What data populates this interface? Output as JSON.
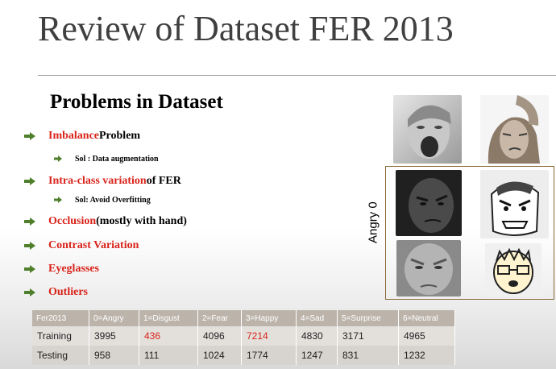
{
  "slide": {
    "title": "Review of Dataset FER 2013",
    "subtitle": "Problems in Dataset",
    "bullets": [
      {
        "red": "Imbalance",
        "rest": " Problem",
        "sub": "Sol : Data augmentation"
      },
      {
        "red": "Intra-class variation",
        "rest": " of FER",
        "sub": "Sol: Avoid Overfitting"
      },
      {
        "red": "Occlusion",
        "rest": " (mostly with hand)",
        "sub": ""
      },
      {
        "red": "Contrast Variation",
        "rest": "",
        "sub": ""
      },
      {
        "red": "Eyeglasses",
        "rest": "",
        "sub": ""
      },
      {
        "red": "Outliers",
        "rest": "",
        "sub": ""
      }
    ],
    "figure_label": "Angry 0",
    "colors": {
      "accent_red": "#d8231a",
      "arrow_green": "#4f7f2a",
      "table_header": "#bcb4ab"
    }
  },
  "table": {
    "headers": [
      "Fer2013",
      "0=Angry",
      "1=Disgust",
      "2=Fear",
      "3=Happy",
      "4=Sad",
      "5=Surprise",
      "6=Neutral"
    ],
    "rows": [
      [
        "Training",
        "3995",
        "436",
        "4096",
        "7214",
        "4830",
        "3171",
        "4965"
      ],
      [
        "Testing",
        "958",
        "111",
        "1024",
        "1774",
        "1247",
        "831",
        "1232"
      ]
    ]
  }
}
